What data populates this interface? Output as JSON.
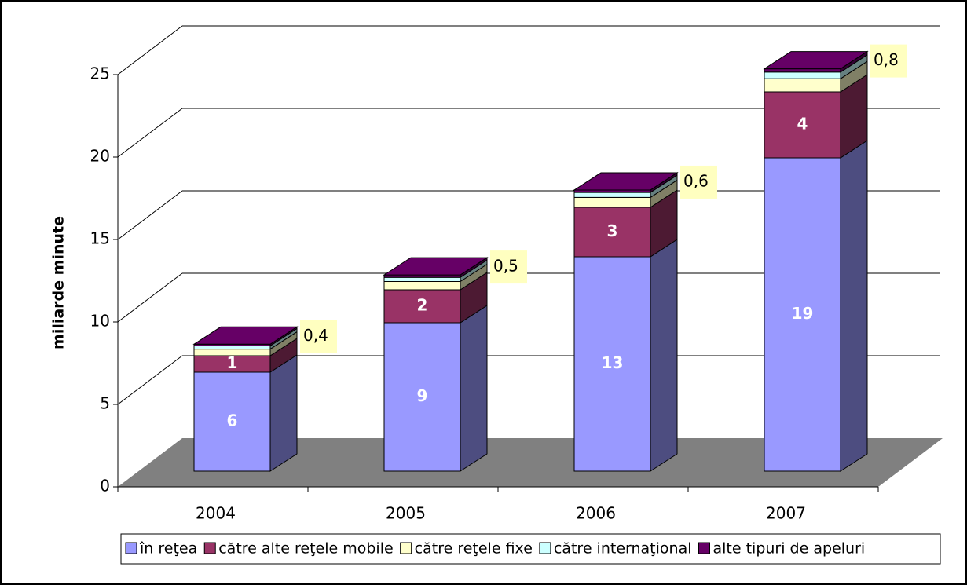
{
  "chart_data": {
    "type": "bar3d-stacked",
    "y_label": "miliarde minute",
    "categories": [
      "2004",
      "2005",
      "2006",
      "2007"
    ],
    "series": [
      {
        "name": "în reţea",
        "color": "#9999ff",
        "values": [
          6,
          9,
          13,
          19
        ]
      },
      {
        "name": "către alte reţele mobile",
        "color": "#993366",
        "values": [
          1,
          2,
          3,
          4
        ]
      },
      {
        "name": "către reţele fixe",
        "color": "#ffffcc",
        "values": [
          0.4,
          0.5,
          0.6,
          0.8
        ],
        "value_labels": [
          "0,4",
          "0,5",
          "0,6",
          "0,8"
        ]
      },
      {
        "name": "către internaţional",
        "color": "#ccffff",
        "values": [
          0.2,
          0.25,
          0.3,
          0.4
        ]
      },
      {
        "name": "alte tipuri de apeluri",
        "color": "#660066",
        "values": [
          0.1,
          0.15,
          0.15,
          0.2
        ]
      }
    ],
    "ylim": [
      0,
      25
    ],
    "yticks": [
      0,
      5,
      10,
      15,
      20,
      25
    ],
    "grid": true,
    "legend": "bottom"
  }
}
